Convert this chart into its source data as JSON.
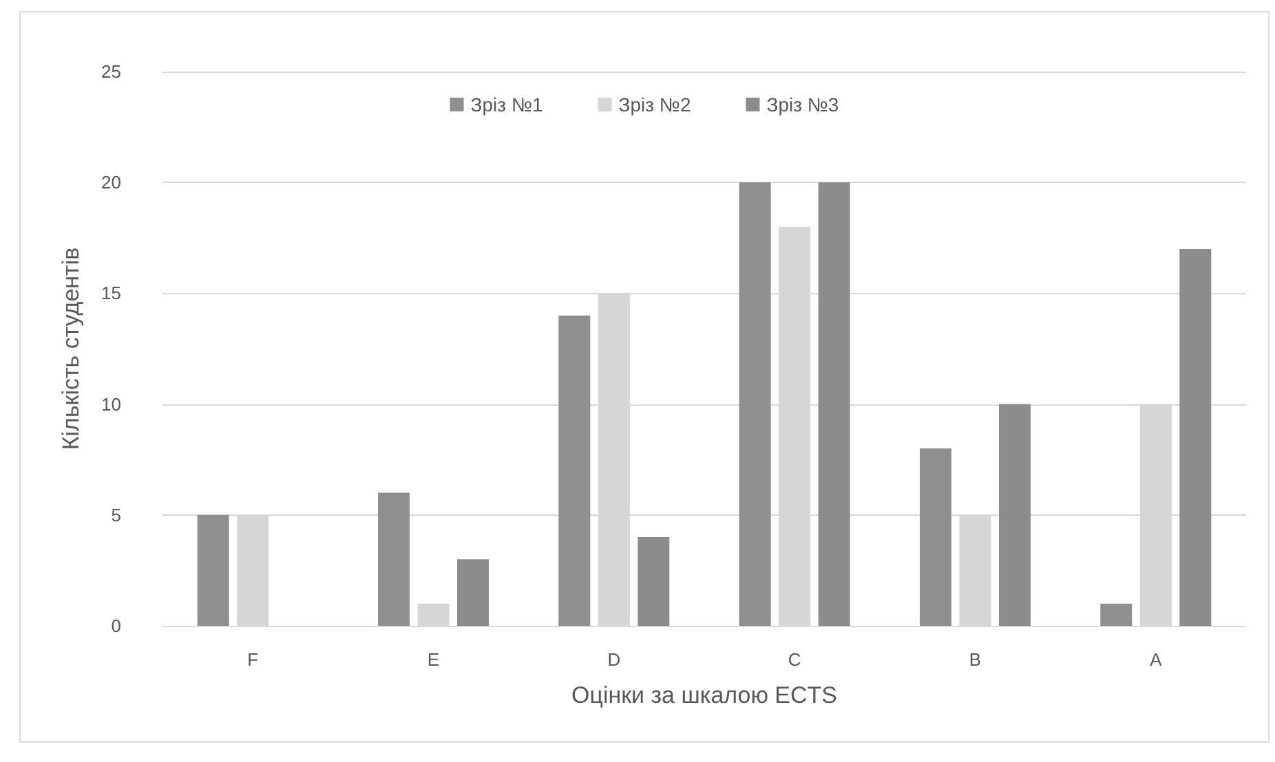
{
  "chart_data": {
    "type": "bar",
    "xlabel": "Оцінки за шкалою ECTS",
    "ylabel": "Кількість студентів",
    "categories": [
      "F",
      "E",
      "D",
      "C",
      "B",
      "A"
    ],
    "series": [
      {
        "name": "Зріз №1",
        "color": "#8f8f8f",
        "values": [
          5,
          6,
          14,
          20,
          8,
          1
        ]
      },
      {
        "name": "Зріз №2",
        "color": "#d6d6d6",
        "values": [
          5,
          1,
          15,
          18,
          5,
          10
        ]
      },
      {
        "name": "Зріз №3",
        "color": "#8c8c8c",
        "values": [
          0,
          3,
          4,
          20,
          10,
          17
        ]
      }
    ],
    "ylim": [
      0,
      25
    ],
    "yticks": [
      0,
      5,
      10,
      15,
      20,
      25
    ],
    "grid": "y",
    "legend": "top"
  }
}
